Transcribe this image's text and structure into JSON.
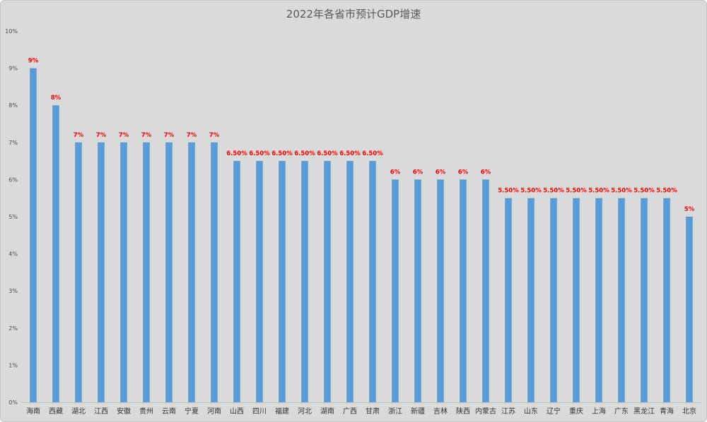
{
  "chart_data": {
    "type": "bar",
    "title": "2022年各省市预计GDP增速",
    "xlabel": "",
    "ylabel": "",
    "ylim": [
      0,
      10
    ],
    "yticks": [
      "0%",
      "1%",
      "2%",
      "3%",
      "4%",
      "5%",
      "6%",
      "7%",
      "8%",
      "9%",
      "10%"
    ],
    "grid": false,
    "legend": "none",
    "bar_color": "#5b9bd5",
    "label_color": "#ff0000",
    "background": "#dadada",
    "categories": [
      "海南",
      "西藏",
      "湖北",
      "江西",
      "安徽",
      "贵州",
      "云南",
      "宁夏",
      "河南",
      "山西",
      "四川",
      "福建",
      "河北",
      "湖南",
      "广西",
      "甘肃",
      "浙江",
      "新疆",
      "吉林",
      "陕西",
      "内蒙古",
      "江苏",
      "山东",
      "辽宁",
      "重庆",
      "上海",
      "广东",
      "黑龙江",
      "青海",
      "北京"
    ],
    "values": [
      9,
      8,
      7,
      7,
      7,
      7,
      7,
      7,
      7,
      6.5,
      6.5,
      6.5,
      6.5,
      6.5,
      6.5,
      6.5,
      6,
      6,
      6,
      6,
      6,
      5.5,
      5.5,
      5.5,
      5.5,
      5.5,
      5.5,
      5.5,
      5.5,
      5
    ],
    "data_labels": [
      "9%",
      "8%",
      "7%",
      "7%",
      "7%",
      "7%",
      "7%",
      "7%",
      "7%",
      "6.50%",
      "6.50%",
      "6.50%",
      "6.50%",
      "6.50%",
      "6.50%",
      "6.50%",
      "6%",
      "6%",
      "6%",
      "6%",
      "6%",
      "5.50%",
      "5.50%",
      "5.50%",
      "5.50%",
      "5.50%",
      "5.50%",
      "5.50%",
      "5.50%",
      "5%"
    ]
  }
}
